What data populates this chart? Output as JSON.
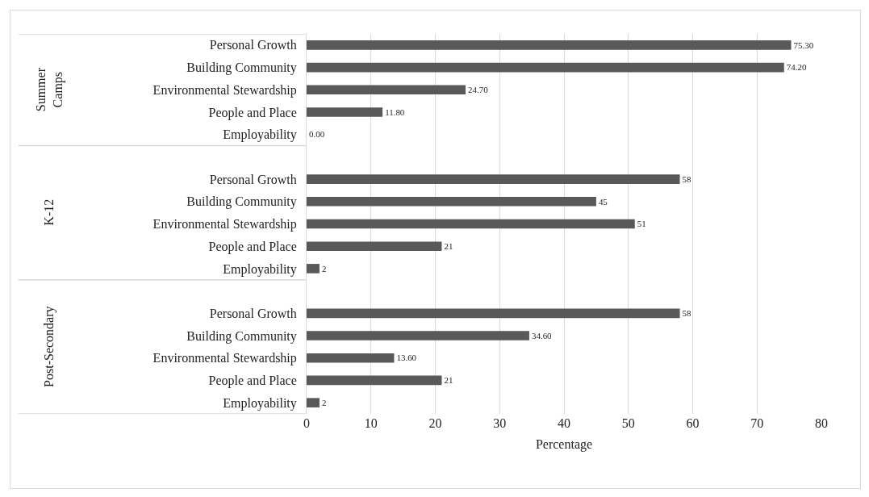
{
  "chart_data": {
    "type": "bar",
    "orientation": "horizontal",
    "xlabel": "Percentage",
    "categories": [
      "Personal Growth",
      "Building Community",
      "Environmental Stewardship",
      "People and Place",
      "Employability",
      "Personal Growth",
      "Building Community",
      "Environmental Stewardship",
      "People and Place",
      "Employability",
      "Personal Growth",
      "Building Community",
      "Environmental Stewardship",
      "People and Place",
      "Employability"
    ],
    "values": [
      75.3,
      74.2,
      24.7,
      11.8,
      0,
      58,
      45,
      51,
      21,
      2,
      58,
      34.6,
      13.6,
      21,
      2
    ],
    "value_labels": [
      "75.30",
      "74.20",
      "24.70",
      "11.80",
      "0.00",
      "58",
      "45",
      "51",
      "21",
      "2",
      "58",
      "34.60",
      "13.60",
      "21",
      "2"
    ],
    "color": "#595959",
    "xlim": [
      0,
      80
    ],
    "xticks": [
      0,
      10,
      20,
      30,
      40,
      50,
      60,
      70,
      80
    ],
    "grid": "x",
    "annotations": [
      "Summer\nCamps",
      "K-12",
      "Post-Secondary"
    ]
  }
}
